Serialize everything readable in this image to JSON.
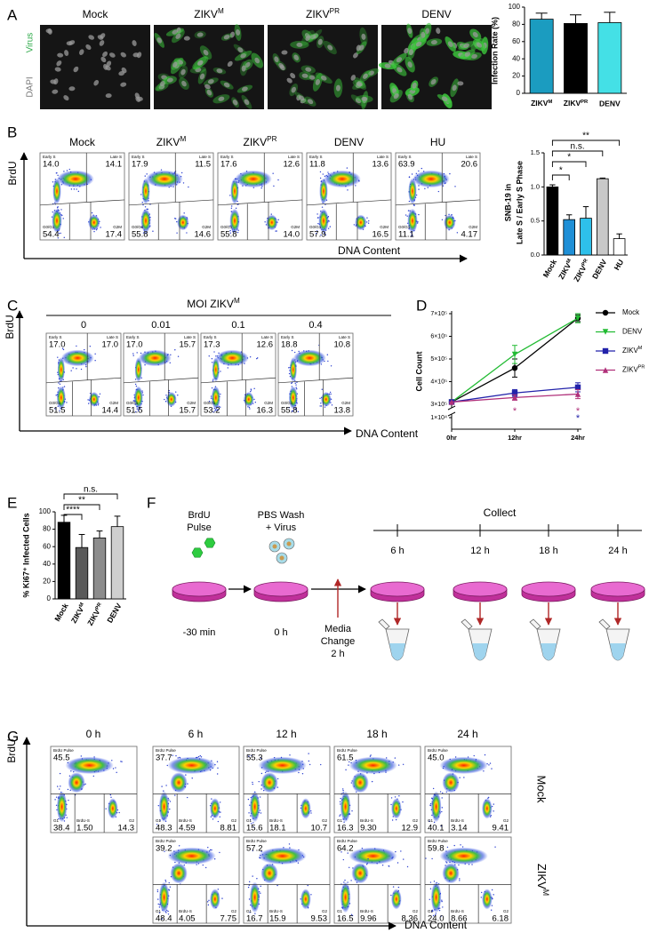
{
  "panel_labels": [
    "A",
    "B",
    "C",
    "D",
    "E",
    "F",
    "G"
  ],
  "panel_a": {
    "titles": [
      "Mock",
      {
        "text": "ZIKV",
        "sup": "M"
      },
      {
        "text": "ZIKV",
        "sup": "PR"
      },
      "DENV"
    ],
    "channel_labels": [
      "Virus",
      "DAPI"
    ]
  },
  "panel_b": {
    "titles": [
      "Mock",
      {
        "text": "ZIKV",
        "sup": "M"
      },
      {
        "text": "ZIKV",
        "sup": "PR"
      },
      "DENV",
      "HU"
    ],
    "gate_labels": [
      "Early S",
      "Late S",
      "G0/G1",
      "G2M"
    ],
    "plots": [
      [
        "14.0",
        "14.1",
        "54.4",
        "17.4"
      ],
      [
        "17.9",
        "11.5",
        "55.8",
        "14.6"
      ],
      [
        "17.6",
        "12.6",
        "55.8",
        "14.0"
      ],
      [
        "11.8",
        "13.6",
        "57.9",
        "16.5"
      ],
      [
        "63.9",
        "20.6",
        "11.1",
        "4.17"
      ]
    ],
    "y_axis": "BrdU",
    "x_axis": "DNA Content"
  },
  "panel_c": {
    "title": {
      "text": "MOI ZIKV",
      "sup": "M"
    },
    "titles": [
      "0",
      "0.01",
      "0.1",
      "0.4"
    ],
    "plots": [
      [
        "17.0",
        "17.0",
        "51.5",
        "14.4"
      ],
      [
        "17.0",
        "15.7",
        "51.5",
        "15.7"
      ],
      [
        "17.3",
        "12.6",
        "53.2",
        "16.3"
      ],
      [
        "18.8",
        "10.8",
        "55.8",
        "13.8"
      ]
    ],
    "y_axis": "BrdU",
    "x_axis": "DNA Content"
  },
  "panel_f": {
    "steps": [
      {
        "lines": [
          "BrdU",
          "Pulse"
        ],
        "time": "-30 min"
      },
      {
        "lines": [
          "PBS Wash",
          "+ Virus"
        ],
        "time": "0 h"
      }
    ],
    "media_change": [
      "Media",
      "Change",
      "2 h"
    ],
    "collect": "Collect",
    "collect_times": [
      "6 h",
      "12 h",
      "18 h",
      "24 h"
    ]
  },
  "panel_g": {
    "times": [
      "0 h",
      "6 h",
      "12 h",
      "18 h",
      "24 h"
    ],
    "rows": [
      "Mock",
      {
        "text": "ZIKV",
        "sup": "M"
      }
    ],
    "gate_labels": [
      "BrdU Pulse",
      "G1",
      "BrdU-S",
      "G2"
    ],
    "plots": [
      [
        [
          "45.5",
          "38.4",
          "1.50",
          "14.3"
        ],
        [
          "37.7",
          "48.3",
          "4.59",
          "8.81"
        ],
        [
          "55.3",
          "15.6",
          "18.1",
          "10.7"
        ],
        [
          "61.5",
          "16.3",
          "9.30",
          "12.9"
        ],
        [
          "45.0",
          "40.1",
          "3.14",
          "9.41"
        ]
      ],
      [
        null,
        [
          "39.2",
          "48.4",
          "4.05",
          "7.75"
        ],
        [
          "57.2",
          "16.7",
          "15.9",
          "9.53"
        ],
        [
          "64.2",
          "16.5",
          "9.96",
          "8.36"
        ],
        [
          "59.8",
          "24.0",
          "8.66",
          "6.18"
        ]
      ]
    ],
    "y_axis": "BrdU",
    "x_axis": "DNA Content"
  },
  "chart_data": [
    {
      "type": "bar",
      "ylabel": "Infection Rate (%)",
      "categories": [
        {
          "text": "ZIKV",
          "sup": "M"
        },
        {
          "text": "ZIKV",
          "sup": "PR"
        },
        "DENV"
      ],
      "values": [
        86,
        81,
        82
      ],
      "errors": [
        7,
        10,
        12
      ],
      "colors": [
        "#1b9cc0",
        "#000000",
        "#44e0e6"
      ],
      "ylim": [
        0,
        100
      ],
      "yticks": [
        0,
        20,
        40,
        60,
        80,
        100
      ]
    },
    {
      "type": "bar",
      "ylabel": [
        "SNB-19 in",
        "Late S / Early S Phase"
      ],
      "categories": [
        "Mock",
        {
          "text": "ZIKV",
          "sup": "M"
        },
        {
          "text": "ZIKV",
          "sup": "PR"
        },
        "DENV",
        "HU"
      ],
      "values": [
        1.0,
        0.52,
        0.54,
        1.12,
        0.24
      ],
      "errors": [
        0.03,
        0.07,
        0.17,
        0.01,
        0.07
      ],
      "colors": [
        "#000000",
        "#1f8fd6",
        "#2ec0ea",
        "#c8c8c8",
        "#ffffff"
      ],
      "ylim": [
        0,
        1.5
      ],
      "yticks": [
        {
          "value": 0,
          "label": "0.0"
        },
        0.5,
        {
          "value": 1,
          "label": "1.0"
        },
        1.5
      ],
      "annotations": [
        "**",
        "n.s.",
        "*",
        "*"
      ]
    },
    {
      "type": "line",
      "ylabel": "Cell Count",
      "categories": [
        "0hr",
        "12hr",
        "24hr"
      ],
      "legend": "right",
      "ylim": [
        0,
        700000
      ],
      "ybreak": [
        10000,
        300000
      ],
      "yticks": [
        {
          "value": 10000,
          "label": "1×10⁴"
        },
        {
          "value": 300000,
          "label": "3×10⁵"
        },
        {
          "value": 400000,
          "label": "4×10⁵"
        },
        {
          "value": 500000,
          "label": "5×10⁵"
        },
        {
          "value": 600000,
          "label": "6×10⁵"
        },
        {
          "value": 700000,
          "label": "7×10⁵"
        }
      ],
      "series": [
        {
          "name": "Mock",
          "color": "#000000",
          "marker": "circle",
          "values": [
            310000,
            460000,
            680000
          ],
          "errors": [
            0,
            40000,
            15000
          ]
        },
        {
          "name": "DENV",
          "color": "#22bb33",
          "marker": "triangle-down",
          "values": [
            310000,
            520000,
            680000
          ],
          "errors": [
            0,
            40000,
            20000
          ]
        },
        {
          "name": {
            "text": "ZIKV",
            "sup": "M"
          },
          "color": "#2222aa",
          "marker": "square",
          "values": [
            310000,
            350000,
            375000
          ],
          "errors": [
            0,
            15000,
            20000
          ]
        },
        {
          "name": {
            "text": "ZIKV",
            "sup": "PR"
          },
          "color": "#b0307a",
          "marker": "triangle-up",
          "values": [
            310000,
            330000,
            345000
          ],
          "errors": [
            0,
            12000,
            20000
          ]
        }
      ],
      "annotations": [
        {
          "text": "*",
          "color": "#b0307a"
        },
        {
          "text": "*",
          "color": "#b0307a"
        },
        {
          "text": "*",
          "color": "#2222aa"
        }
      ]
    },
    {
      "type": "bar",
      "ylabel": "% Ki67⁺ Infected Cells",
      "categories": [
        "Mock",
        {
          "text": "ZIKV",
          "sup": "M"
        },
        {
          "text": "ZIKV",
          "sup": "PR"
        },
        "DENV"
      ],
      "values": [
        88,
        59,
        70,
        83
      ],
      "errors": [
        8,
        15,
        8,
        12
      ],
      "colors": [
        "#000000",
        "#5a5a5a",
        "#8c8c8c",
        "#cfcfcf"
      ],
      "ylim": [
        0,
        100
      ],
      "yticks": [
        0,
        20,
        40,
        60,
        80,
        100
      ],
      "annotations": [
        "n.s.",
        "**",
        "****"
      ]
    }
  ]
}
